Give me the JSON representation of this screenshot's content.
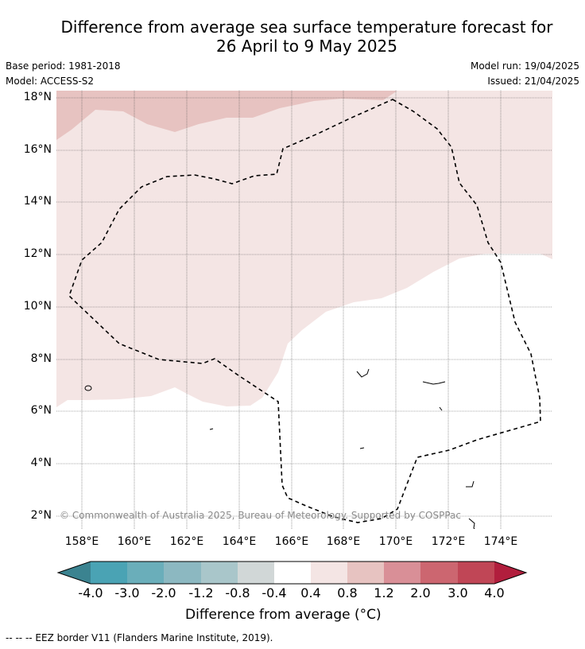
{
  "title_line1": "Difference from average sea surface temperature forecast for",
  "title_line2": "26 April to 9 May 2025",
  "meta": {
    "base_period": "Base period: 1981-2018",
    "model": "Model: ACCESS-S2",
    "model_run": "Model run: 19/04/2025",
    "issued": "Issued: 21/04/2025"
  },
  "copyright": "© Commonwealth of Australia 2025, Bureau of Meteorology. Supported by COSPPac",
  "latitude_labels": [
    "18°N",
    "16°N",
    "14°N",
    "12°N",
    "10°N",
    "8°N",
    "6°N",
    "4°N",
    "2°N"
  ],
  "longitude_labels": [
    "158°E",
    "160°E",
    "162°E",
    "164°E",
    "166°E",
    "168°E",
    "170°E",
    "172°E",
    "174°E"
  ],
  "colorbar": {
    "ticks": [
      "-4.0",
      "-3.0",
      "-2.0",
      "-1.2",
      "-0.8",
      "-0.4",
      "0.4",
      "0.8",
      "1.2",
      "2.0",
      "3.0",
      "4.0"
    ],
    "label": "Difference from average (°C)",
    "colors": {
      "below_min": "#3b8390",
      "bin_-4_-3": "#4aa3b4",
      "bin_-3_-2": "#6aaeba",
      "bin_-2_-1.2": "#8cb8c1",
      "bin_-1.2_-0.8": "#a9c6ca",
      "bin_-0.8_-0.4": "#d1d7d7",
      "bin_-0.4_0.4": "#ffffff",
      "bin_0.4_0.8": "#f4e5e4",
      "bin_0.8_1.2": "#e7c3c1",
      "bin_1.2_2.0": "#d98f97",
      "bin_2.0_3.0": "#cc6670",
      "bin_3.0_4.0": "#c04656",
      "above_max": "#b11e3d"
    }
  },
  "legend": "--  --  -- EEZ border V11 (Flanders Marine Institute, 2019)."
}
